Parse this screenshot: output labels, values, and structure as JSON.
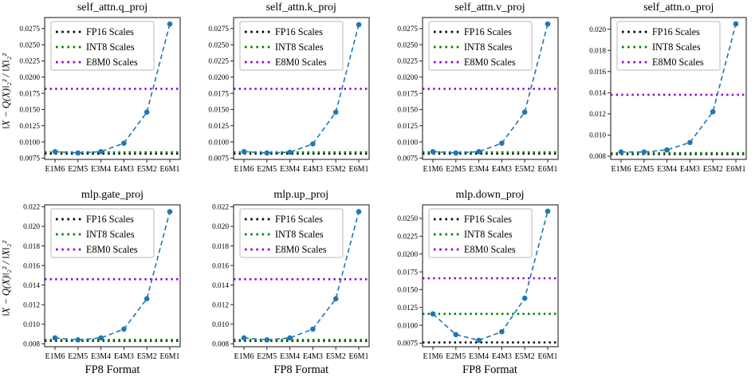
{
  "figure": {
    "ylabel": "‖X − Q(X)‖₂² / ‖X‖₂²",
    "xlabel": "FP8 Format",
    "series_color": "#1f77b4",
    "legend": [
      {
        "label": "FP16 Scales",
        "color": "#000000"
      },
      {
        "label": "INT8 Scales",
        "color": "#008000"
      },
      {
        "label": "E8M0 Scales",
        "color": "#9400d3"
      }
    ],
    "legend_loc": "upper left"
  },
  "chart_data": [
    {
      "type": "line",
      "title": "self_attn.q_proj",
      "categories": [
        "E1M6",
        "E2M5",
        "E3M4",
        "E4M3",
        "E5M2",
        "E6M1"
      ],
      "values": [
        0.0085,
        0.0083,
        0.0085,
        0.0098,
        0.0146,
        0.0282
      ],
      "hlines": [
        {
          "name": "FP16 Scales",
          "value": 0.0082,
          "color": "#000000"
        },
        {
          "name": "INT8 Scales",
          "value": 0.0084,
          "color": "#008000"
        },
        {
          "name": "E8M0 Scales",
          "value": 0.0182,
          "color": "#9400d3"
        }
      ],
      "yticks": [
        "0.0075",
        "0.0100",
        "0.0125",
        "0.0150",
        "0.0175",
        "0.0200",
        "0.0225",
        "0.0250",
        "0.0275"
      ],
      "ylim": [
        0.0073,
        0.0292
      ],
      "show_ylabel": true,
      "show_xlabel": false
    },
    {
      "type": "line",
      "title": "self_attn.k_proj",
      "categories": [
        "E1M6",
        "E2M5",
        "E3M4",
        "E4M3",
        "E5M2",
        "E6M1"
      ],
      "values": [
        0.0085,
        0.0083,
        0.0084,
        0.0097,
        0.0146,
        0.0281
      ],
      "hlines": [
        {
          "name": "FP16 Scales",
          "value": 0.0082,
          "color": "#000000"
        },
        {
          "name": "INT8 Scales",
          "value": 0.0084,
          "color": "#008000"
        },
        {
          "name": "E8M0 Scales",
          "value": 0.0182,
          "color": "#9400d3"
        }
      ],
      "yticks": [
        "0.0075",
        "0.0100",
        "0.0125",
        "0.0150",
        "0.0175",
        "0.0200",
        "0.0225",
        "0.0250",
        "0.0275"
      ],
      "ylim": [
        0.0073,
        0.0292
      ],
      "show_ylabel": false,
      "show_xlabel": false
    },
    {
      "type": "line",
      "title": "self_attn.v_proj",
      "categories": [
        "E1M6",
        "E2M5",
        "E3M4",
        "E4M3",
        "E5M2",
        "E6M1"
      ],
      "values": [
        0.0085,
        0.0083,
        0.0085,
        0.0098,
        0.0146,
        0.0282
      ],
      "hlines": [
        {
          "name": "FP16 Scales",
          "value": 0.0082,
          "color": "#000000"
        },
        {
          "name": "INT8 Scales",
          "value": 0.0084,
          "color": "#008000"
        },
        {
          "name": "E8M0 Scales",
          "value": 0.0182,
          "color": "#9400d3"
        }
      ],
      "yticks": [
        "0.0075",
        "0.0100",
        "0.0125",
        "0.0150",
        "0.0175",
        "0.0200",
        "0.0225",
        "0.0250",
        "0.0275"
      ],
      "ylim": [
        0.0073,
        0.0292
      ],
      "show_ylabel": false,
      "show_xlabel": false
    },
    {
      "type": "line",
      "title": "self_attn.o_proj",
      "categories": [
        "E1M6",
        "E2M5",
        "E3M4",
        "E4M3",
        "E5M2",
        "E6M1"
      ],
      "values": [
        0.0084,
        0.0084,
        0.0086,
        0.0093,
        0.0122,
        0.0205
      ],
      "hlines": [
        {
          "name": "FP16 Scales",
          "value": 0.0082,
          "color": "#000000"
        },
        {
          "name": "INT8 Scales",
          "value": 0.0083,
          "color": "#008000"
        },
        {
          "name": "E8M0 Scales",
          "value": 0.0138,
          "color": "#9400d3"
        }
      ],
      "yticks": [
        "0.008",
        "0.010",
        "0.012",
        "0.014",
        "0.016",
        "0.018",
        "0.020"
      ],
      "ylim": [
        0.0077,
        0.0211
      ],
      "show_ylabel": false,
      "show_xlabel": false
    },
    {
      "type": "line",
      "title": "mlp.gate_proj",
      "categories": [
        "E1M6",
        "E2M5",
        "E3M4",
        "E4M3",
        "E5M2",
        "E6M1"
      ],
      "values": [
        0.0086,
        0.0084,
        0.0086,
        0.0095,
        0.0126,
        0.0215
      ],
      "hlines": [
        {
          "name": "FP16 Scales",
          "value": 0.0083,
          "color": "#000000"
        },
        {
          "name": "INT8 Scales",
          "value": 0.0084,
          "color": "#008000"
        },
        {
          "name": "E8M0 Scales",
          "value": 0.0146,
          "color": "#9400d3"
        }
      ],
      "yticks": [
        "0.008",
        "0.010",
        "0.012",
        "0.014",
        "0.016",
        "0.018",
        "0.020",
        "0.022"
      ],
      "ylim": [
        0.0077,
        0.0222
      ],
      "show_ylabel": true,
      "show_xlabel": true
    },
    {
      "type": "line",
      "title": "mlp.up_proj",
      "categories": [
        "E1M6",
        "E2M5",
        "E3M4",
        "E4M3",
        "E5M2",
        "E6M1"
      ],
      "values": [
        0.0086,
        0.0084,
        0.0086,
        0.0095,
        0.0126,
        0.0215
      ],
      "hlines": [
        {
          "name": "FP16 Scales",
          "value": 0.0083,
          "color": "#000000"
        },
        {
          "name": "INT8 Scales",
          "value": 0.0084,
          "color": "#008000"
        },
        {
          "name": "E8M0 Scales",
          "value": 0.0146,
          "color": "#9400d3"
        }
      ],
      "yticks": [
        "0.008",
        "0.010",
        "0.012",
        "0.014",
        "0.016",
        "0.018",
        "0.020",
        "0.022"
      ],
      "ylim": [
        0.0077,
        0.0222
      ],
      "show_ylabel": false,
      "show_xlabel": true
    },
    {
      "type": "line",
      "title": "mlp.down_proj",
      "categories": [
        "E1M6",
        "E2M5",
        "E3M4",
        "E4M3",
        "E5M2",
        "E6M1"
      ],
      "values": [
        0.0116,
        0.0087,
        0.0079,
        0.0091,
        0.0138,
        0.026
      ],
      "hlines": [
        {
          "name": "FP16 Scales",
          "value": 0.0076,
          "color": "#000000"
        },
        {
          "name": "INT8 Scales",
          "value": 0.0116,
          "color": "#008000"
        },
        {
          "name": "E8M0 Scales",
          "value": 0.0166,
          "color": "#9400d3"
        }
      ],
      "yticks": [
        "0.0075",
        "0.0100",
        "0.0125",
        "0.0150",
        "0.0175",
        "0.0200",
        "0.0225",
        "0.0250"
      ],
      "ylim": [
        0.007,
        0.0269
      ],
      "show_ylabel": false,
      "show_xlabel": true
    }
  ]
}
